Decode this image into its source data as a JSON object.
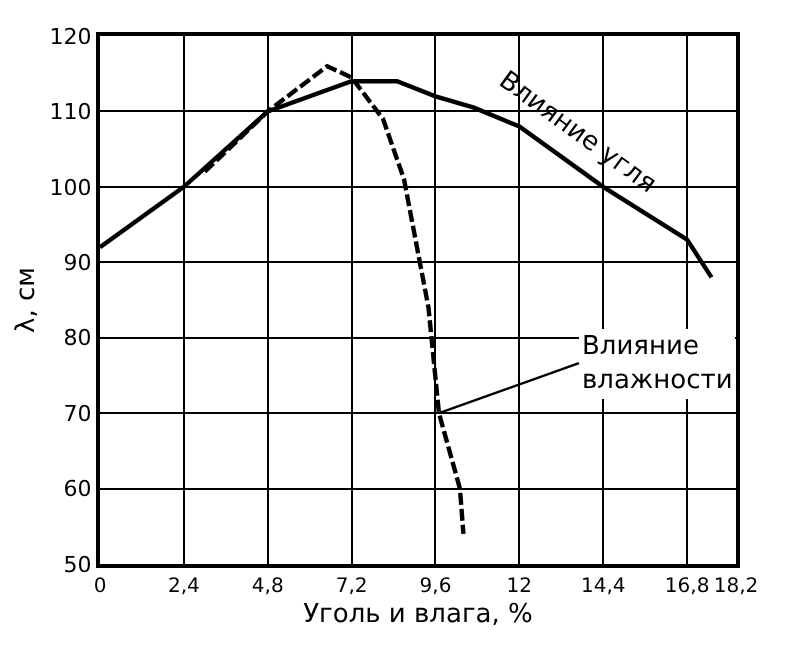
{
  "chart_data": {
    "type": "line",
    "xlabel": "Уголь и влага, %",
    "ylabel": "λ, см",
    "xlim": [
      0,
      18.2
    ],
    "ylim": [
      50,
      120
    ],
    "xticks": [
      0,
      {
        "value": 2.4,
        "label": "2,4"
      },
      {
        "value": 4.8,
        "label": "4,8"
      },
      {
        "value": 7.2,
        "label": "7,2"
      },
      {
        "value": 9.6,
        "label": "9,6"
      },
      12,
      {
        "value": 14.4,
        "label": "14,4"
      },
      {
        "value": 16.8,
        "label": "16,8"
      },
      {
        "value": 18.2,
        "label": "18,2"
      }
    ],
    "yticks": [
      50,
      60,
      70,
      80,
      90,
      100,
      110,
      120
    ],
    "grid": true,
    "legend": false,
    "marker": "none",
    "series": [
      {
        "name": "Влияние угля",
        "color": "#000000",
        "line_style": "solid",
        "x": [
          0,
          2.4,
          4.8,
          7.2,
          8.5,
          9.6,
          10.7,
          12,
          14.4,
          16.8,
          17.5
        ],
        "values": [
          92,
          100,
          110,
          114,
          114,
          112,
          110.5,
          108,
          100,
          93,
          88
        ]
      },
      {
        "name": "Влияние влажности",
        "color": "#000000",
        "line_style": "dashed",
        "x": [
          3,
          4.8,
          6.5,
          7.2,
          8.1,
          8.7,
          9.4,
          9.7,
          10.3,
          10.4
        ],
        "values": [
          102,
          110,
          116,
          114.5,
          109,
          101,
          84,
          70,
          60,
          54
        ]
      }
    ]
  }
}
